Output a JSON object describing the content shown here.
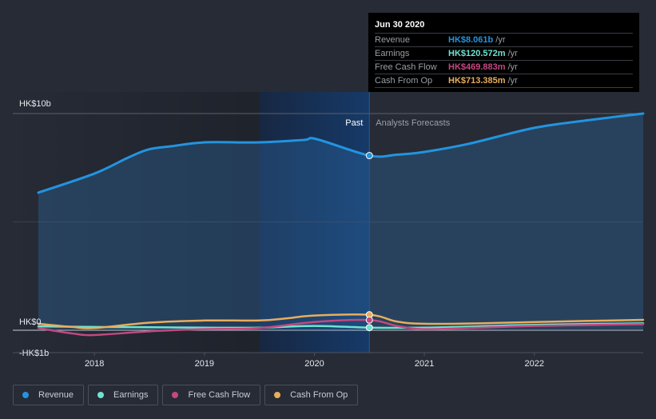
{
  "colors": {
    "revenue": "#2394df",
    "earnings": "#6fe3d0",
    "free_cash_flow": "#c2497f",
    "cash_from_op": "#e8ad5c",
    "background": "#262b36",
    "past_shade": "#1f2d45",
    "highlight_shade": "#163863",
    "grid": "#4d525d"
  },
  "tooltip": {
    "date": "Jun 30 2020",
    "rows": [
      {
        "name": "Revenue",
        "value": "HK$8.061b",
        "unit": "/yr",
        "color": "#2394df"
      },
      {
        "name": "Earnings",
        "value": "HK$120.572m",
        "unit": "/yr",
        "color": "#6fe3d0"
      },
      {
        "name": "Free Cash Flow",
        "value": "HK$469.883m",
        "unit": "/yr",
        "color": "#c2497f"
      },
      {
        "name": "Cash From Op",
        "value": "HK$713.385m",
        "unit": "/yr",
        "color": "#e8ad5c"
      }
    ]
  },
  "legend": [
    {
      "label": "Revenue",
      "color": "#2394df"
    },
    {
      "label": "Earnings",
      "color": "#6fe3d0"
    },
    {
      "label": "Free Cash Flow",
      "color": "#c2497f"
    },
    {
      "label": "Cash From Op",
      "color": "#e8ad5c"
    }
  ],
  "chart_data": {
    "type": "area",
    "title": "",
    "xlabel": "",
    "ylabel": "",
    "y_unit": "HK$ billions",
    "ylim": [
      -1,
      10
    ],
    "xlim": [
      2017.49,
      2022.99
    ],
    "y_tick_labels": [
      {
        "value": 10,
        "label": "HK$10b"
      },
      {
        "value": 0,
        "label": "HK$0"
      },
      {
        "value": -1,
        "label": "-HK$1b"
      }
    ],
    "x_tick_labels": [
      {
        "value": 2018,
        "label": "2018"
      },
      {
        "value": 2019,
        "label": "2019"
      },
      {
        "value": 2020,
        "label": "2020"
      },
      {
        "value": 2021,
        "label": "2021"
      },
      {
        "value": 2022,
        "label": "2022"
      }
    ],
    "gridlines": [
      10,
      5,
      0
    ],
    "past_label": "Past",
    "forecast_label": "Analysts Forecasts",
    "divider_x": 2020.5,
    "highlight_range": [
      2019.5,
      2020.5
    ],
    "legend_position": "bottom-left",
    "series": [
      {
        "name": "Revenue",
        "key": "revenue",
        "filled": true,
        "x": [
          2017.49,
          2018.0,
          2018.3,
          2018.49,
          2018.7,
          2019.0,
          2019.5,
          2019.9,
          2020.02,
          2020.5,
          2020.75,
          2021.0,
          2021.4,
          2022.0,
          2022.5,
          2022.99
        ],
        "y": [
          6.35,
          7.23,
          7.95,
          8.34,
          8.49,
          8.67,
          8.67,
          8.78,
          8.82,
          8.061,
          8.1,
          8.23,
          8.6,
          9.34,
          9.7,
          10.0
        ]
      },
      {
        "name": "Earnings",
        "key": "earnings",
        "x": [
          2017.49,
          2018.0,
          2018.5,
          2019.0,
          2019.5,
          2020.0,
          2020.5,
          2021.0,
          2021.5,
          2022.0,
          2022.99
        ],
        "y": [
          0.18,
          0.15,
          0.14,
          0.12,
          0.12,
          0.2,
          0.121,
          0.12,
          0.18,
          0.25,
          0.32
        ]
      },
      {
        "name": "Free Cash Flow",
        "key": "free_cash_flow",
        "x": [
          2017.49,
          2017.8,
          2018.0,
          2018.5,
          2019.0,
          2019.5,
          2020.0,
          2020.5,
          2020.75,
          2021.0,
          2021.5,
          2022.0,
          2022.99
        ],
        "y": [
          0.1,
          -0.15,
          -0.22,
          -0.05,
          0.05,
          0.1,
          0.38,
          0.47,
          0.2,
          0.05,
          0.12,
          0.2,
          0.28
        ]
      },
      {
        "name": "Cash From Op",
        "key": "cash_from_op",
        "x": [
          2017.49,
          2017.8,
          2018.0,
          2018.5,
          2019.0,
          2019.5,
          2019.75,
          2020.0,
          2020.5,
          2020.75,
          2021.0,
          2021.5,
          2022.0,
          2022.99
        ],
        "y": [
          0.3,
          0.15,
          0.1,
          0.35,
          0.45,
          0.45,
          0.55,
          0.68,
          0.713,
          0.4,
          0.3,
          0.32,
          0.38,
          0.48
        ]
      }
    ],
    "highlight_point": {
      "x": 2020.5,
      "revenue": 8.061,
      "earnings": 0.121,
      "free_cash_flow": 0.47,
      "cash_from_op": 0.713
    }
  }
}
